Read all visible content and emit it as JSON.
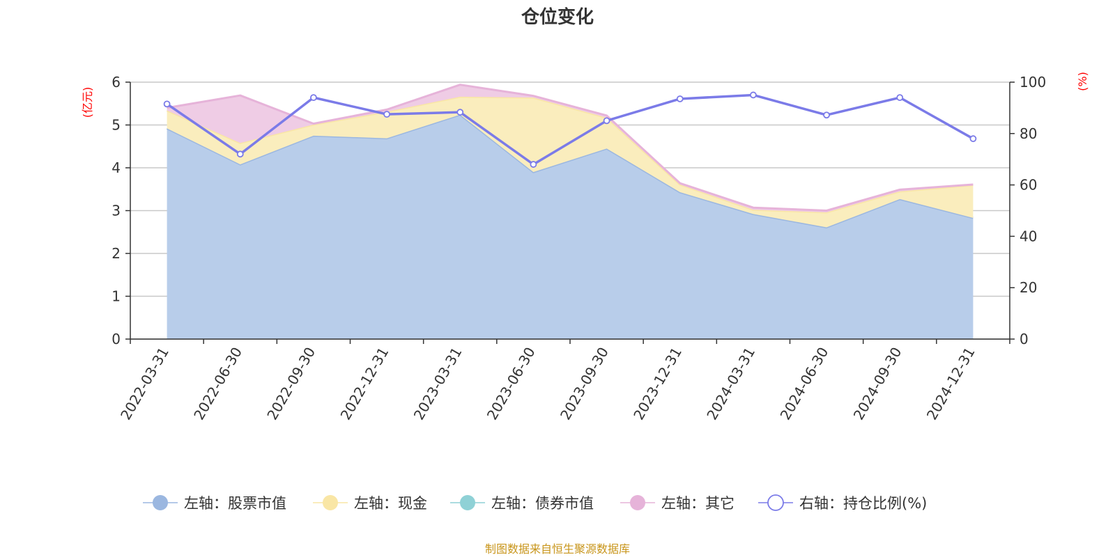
{
  "chart_data": {
    "type": "area",
    "title": "仓位变化",
    "categories": [
      "2022-03-31",
      "2022-06-30",
      "2022-09-30",
      "2022-12-31",
      "2023-03-31",
      "2023-06-30",
      "2023-09-30",
      "2023-12-31",
      "2024-03-31",
      "2024-06-30",
      "2024-09-30",
      "2024-12-31"
    ],
    "left_axis": {
      "unit": "(亿元)",
      "ylim": [
        0,
        6
      ],
      "ticks": [
        "0",
        "1",
        "2",
        "3",
        "4",
        "5",
        "6"
      ]
    },
    "right_axis": {
      "unit": "(%)",
      "ylim": [
        0,
        100
      ],
      "ticks": [
        "0",
        "20",
        "40",
        "60",
        "80",
        "100"
      ]
    },
    "stacked": true,
    "series": [
      {
        "name": "左轴：股票市值",
        "axis": "left",
        "type": "area",
        "color": "#9bb7e0",
        "fill": "#b8cdea",
        "values": [
          4.92,
          4.08,
          4.75,
          4.69,
          5.24,
          3.9,
          4.45,
          3.43,
          2.92,
          2.61,
          3.27,
          2.83
        ]
      },
      {
        "name": "左轴：现金",
        "axis": "left",
        "type": "area",
        "color": "#f9e6a5",
        "fill": "#faedbd",
        "values": [
          0.42,
          0.5,
          0.26,
          0.62,
          0.42,
          1.74,
          0.72,
          0.18,
          0.1,
          0.35,
          0.18,
          0.77
        ]
      },
      {
        "name": "左轴：债券市值",
        "axis": "left",
        "type": "area",
        "color": "#8fd1d6",
        "fill": "#b8e3e6",
        "values": [
          0,
          0,
          0,
          0,
          0,
          0,
          0,
          0,
          0,
          0,
          0,
          0
        ]
      },
      {
        "name": "左轴：其它",
        "axis": "left",
        "type": "area",
        "color": "#e6b3d9",
        "fill": "#efcce5",
        "values": [
          0.06,
          1.11,
          0.02,
          0.05,
          0.28,
          0.04,
          0.05,
          0.03,
          0.05,
          0.04,
          0.04,
          0.01
        ]
      },
      {
        "name": "右轴：持仓比例(%)",
        "axis": "right",
        "type": "line",
        "color": "#7b7be8",
        "values": [
          91.5,
          72.0,
          94.0,
          87.5,
          88.3,
          68.0,
          85.0,
          93.5,
          95.0,
          87.2,
          94.0,
          78.0
        ]
      }
    ],
    "grid": true,
    "legend_position": "bottom"
  },
  "source_note": "制图数据来自恒生聚源数据库"
}
